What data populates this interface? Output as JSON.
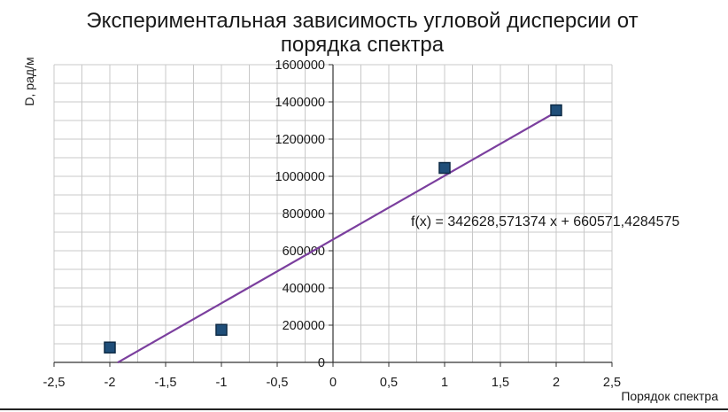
{
  "chart_data": {
    "type": "scatter",
    "title_lines": [
      "Экспериментальная зависимость угловой дисперсии от",
      "порядка спектра"
    ],
    "xlabel": "Порядок спектра",
    "ylabel": "D, рад/м",
    "xlim": [
      -2.5,
      2.5
    ],
    "ylim": [
      0,
      1600000
    ],
    "x_ticks": [
      -2.5,
      -2,
      -1.5,
      -1,
      -0.5,
      0,
      0.5,
      1,
      1.5,
      2,
      2.5
    ],
    "x_tick_labels": [
      "-2,5",
      "-2",
      "-1,5",
      "-1",
      "-0,5",
      "0",
      "0,5",
      "1",
      "1,5",
      "2",
      "2,5"
    ],
    "y_ticks": [
      0,
      200000,
      400000,
      600000,
      800000,
      1000000,
      1200000,
      1400000,
      1600000
    ],
    "y_tick_labels": [
      "0",
      "200000",
      "400000",
      "600000",
      "800000",
      "1000000",
      "1200000",
      "1400000",
      "1600000"
    ],
    "grid": true,
    "points": [
      {
        "x": -2,
        "y": 80000
      },
      {
        "x": -1,
        "y": 175000
      },
      {
        "x": 1,
        "y": 1045000
      },
      {
        "x": 2,
        "y": 1355000
      }
    ],
    "trendline": {
      "slope": 342628.571374,
      "intercept": 660571.4284575,
      "x_range": [
        -1.93,
        2
      ],
      "equation": "f(x) = 342628,571374 x + 660571,4284575"
    },
    "colors": {
      "marker_fill": "#1f4e79",
      "marker_stroke": "#0d2a45",
      "trendline": "#7b3f9e",
      "grid": "#c8c8c8",
      "axis": "#333333"
    }
  }
}
